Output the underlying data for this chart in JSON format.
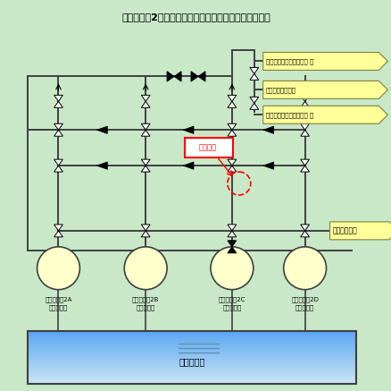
{
  "title": "伊方発電所2号機　海水ポンプ出口塩素注入配管概略図",
  "bg_color": "#c8e8c8",
  "pipe_color": "#404040",
  "pipe_lw": 1.4,
  "label_bg": "#ffff99",
  "pumps": [
    {
      "label1": "海水ポンプ2A",
      "label2": "（運転中）"
    },
    {
      "label1": "海水ポンプ2B",
      "label2": "（運転中）"
    },
    {
      "label1": "海水ポンプ2C",
      "label2": "（停止中）"
    },
    {
      "label1": "海水ポンプ2D",
      "label2": "（運転中）"
    }
  ],
  "dest_labels": [
    "原子炉補機冷却水冷却器 等",
    "軸受冷却水冷却器",
    "原子炉補機冷却水冷却器 等"
  ],
  "chlorine_label": "塩素注入装置",
  "pit_label": "取水ピット",
  "highlight_label": "当該箇所"
}
